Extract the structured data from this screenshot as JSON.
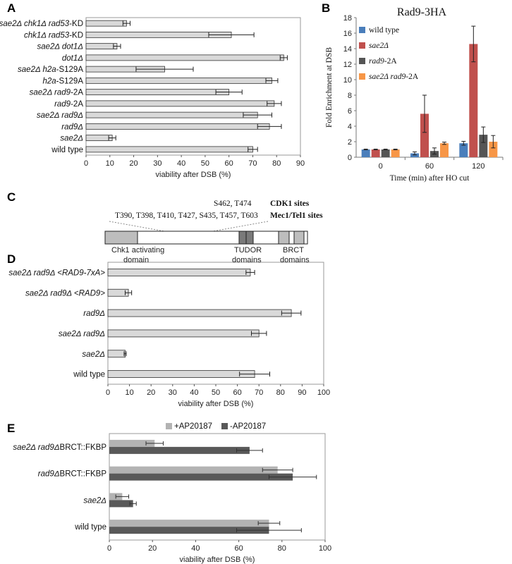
{
  "panels": {
    "A": "A",
    "B": "B",
    "C": "C",
    "D": "D",
    "E": "E"
  },
  "chart_data": [
    {
      "id": "A",
      "type": "bar",
      "orientation": "horizontal",
      "categories": [
        {
          "text": "sae2Δ chk1Δ rad53-KD",
          "italic": true,
          "sub": [
            [
              "sae2Δ chk1Δ rad53",
              true
            ],
            [
              "-KD",
              false
            ]
          ]
        },
        {
          "text": "chk1Δ rad53-KD",
          "sub": [
            [
              "chk1Δ rad53",
              true
            ],
            [
              "-KD",
              false
            ]
          ]
        },
        {
          "text": "sae2Δ dot1Δ",
          "sub": [
            [
              "sae2Δ dot1Δ",
              true
            ]
          ]
        },
        {
          "text": "dot1Δ",
          "sub": [
            [
              "dot1Δ",
              true
            ]
          ]
        },
        {
          "text": "sae2Δ h2a-S129A",
          "sub": [
            [
              "sae2Δ h2a",
              true
            ],
            [
              "-S129A",
              false
            ]
          ]
        },
        {
          "text": "h2a-S129A",
          "sub": [
            [
              "h2a",
              true
            ],
            [
              "-S129A",
              false
            ]
          ]
        },
        {
          "text": "sae2Δ rad9-2A",
          "sub": [
            [
              "sae2Δ rad9",
              true
            ],
            [
              "-2A",
              false
            ]
          ]
        },
        {
          "text": "rad9-2A",
          "sub": [
            [
              "rad9",
              true
            ],
            [
              "-2A",
              false
            ]
          ]
        },
        {
          "text": "sae2Δ rad9Δ",
          "sub": [
            [
              "sae2Δ rad9Δ",
              true
            ]
          ]
        },
        {
          "text": "rad9Δ",
          "sub": [
            [
              "rad9Δ",
              true
            ]
          ]
        },
        {
          "text": "sae2Δ",
          "sub": [
            [
              "sae2Δ",
              true
            ]
          ]
        },
        {
          "text": "wild type",
          "sub": [
            [
              "wild type",
              false
            ]
          ]
        }
      ],
      "values": [
        17,
        61,
        13,
        83,
        33,
        78,
        60,
        79,
        72,
        77,
        11,
        70
      ],
      "errors": [
        1.5,
        9.5,
        1.5,
        1.5,
        12,
        2.5,
        5.5,
        3,
        6,
        5,
        1.5,
        2
      ],
      "xlim": [
        0,
        90
      ],
      "xticks": [
        0,
        10,
        20,
        30,
        40,
        50,
        60,
        70,
        80,
        90
      ],
      "xlabel": "viability after DSB (%)"
    },
    {
      "id": "B",
      "type": "bar",
      "title": "Rad9-3HA",
      "categories": [
        "0",
        "60",
        "120"
      ],
      "xlabel": "Time (min) after HO cut",
      "ylabel": "Fold Enrichment at DSB",
      "ylim": [
        0,
        18
      ],
      "yticks": [
        0,
        2,
        4,
        6,
        8,
        10,
        12,
        14,
        16,
        18
      ],
      "series": [
        {
          "name": "wild type",
          "italic": false,
          "color": "#4a7ebb",
          "values": [
            1.0,
            0.5,
            1.8
          ],
          "errors": [
            0.05,
            0.2,
            0.25
          ]
        },
        {
          "name": "sae2Δ",
          "italic": true,
          "color": "#c0504d",
          "values": [
            1.0,
            5.6,
            14.6
          ],
          "errors": [
            0.05,
            2.4,
            2.3
          ]
        },
        {
          "name": "rad9-2A",
          "italic": true,
          "suffix": "-2A",
          "base": "rad9",
          "color": "#555555",
          "values": [
            1.0,
            0.8,
            2.9
          ],
          "errors": [
            0.05,
            0.4,
            1.0
          ]
        },
        {
          "name": "sae2Δ rad9-2A",
          "italic": true,
          "suffix": "-2A",
          "base": "sae2Δ rad9",
          "color": "#f79646",
          "values": [
            1.0,
            1.8,
            2.0
          ],
          "errors": [
            0.05,
            0.15,
            0.8
          ]
        }
      ]
    },
    {
      "id": "D",
      "type": "bar",
      "orientation": "horizontal",
      "categories": [
        {
          "text": "sae2Δ rad9Δ <RAD9-7xA>",
          "sub": [
            [
              "sae2Δ rad9Δ <RAD9-7xA>",
              true
            ]
          ]
        },
        {
          "text": "sae2Δ rad9Δ <RAD9>",
          "sub": [
            [
              "sae2Δ rad9Δ <RAD9>",
              true
            ]
          ]
        },
        {
          "text": "rad9Δ",
          "sub": [
            [
              "rad9Δ",
              true
            ]
          ]
        },
        {
          "text": "sae2Δ rad9Δ",
          "sub": [
            [
              "sae2Δ rad9Δ",
              true
            ]
          ]
        },
        {
          "text": "sae2Δ",
          "sub": [
            [
              "sae2Δ",
              true
            ]
          ]
        },
        {
          "text": "wild type",
          "sub": [
            [
              "wild type",
              false
            ]
          ]
        }
      ],
      "values": [
        66,
        9.5,
        85,
        70,
        8,
        68
      ],
      "errors": [
        2,
        1.5,
        4.5,
        3.5,
        0.5,
        7
      ],
      "xlim": [
        0,
        100
      ],
      "xticks": [
        0,
        10,
        20,
        30,
        40,
        50,
        60,
        70,
        80,
        90,
        100
      ],
      "xlabel": "viability after DSB (%)"
    },
    {
      "id": "E",
      "type": "bar",
      "orientation": "horizontal",
      "categories": [
        {
          "text": "sae2Δ rad9ΔBRCT::FKBP",
          "sub": [
            [
              "sae2Δ rad9Δ",
              true
            ],
            [
              "BRCT::FKBP",
              false
            ]
          ]
        },
        {
          "text": "rad9ΔBRCT::FKBP",
          "sub": [
            [
              "rad9Δ",
              true
            ],
            [
              "BRCT::FKBP",
              false
            ]
          ]
        },
        {
          "text": "sae2Δ",
          "sub": [
            [
              "sae2Δ",
              true
            ]
          ]
        },
        {
          "text": "wild type",
          "sub": [
            [
              "wild type",
              false
            ]
          ]
        }
      ],
      "series": [
        {
          "name": "+AP20187",
          "color": "#b3b3b3",
          "values": [
            21,
            78,
            6,
            74
          ],
          "errors": [
            4,
            7,
            3,
            5
          ]
        },
        {
          "name": "-AP20187",
          "color": "#595959",
          "values": [
            65,
            85,
            11,
            74
          ],
          "errors": [
            6,
            11,
            1.5,
            15
          ]
        }
      ],
      "xlim": [
        0,
        100
      ],
      "xticks": [
        0,
        20,
        40,
        60,
        80,
        100
      ],
      "xlabel": "viability after DSB (%)"
    }
  ],
  "diagram_c": {
    "cdk1_sites": "S462, T474",
    "cdk1_label": "CDK1 sites",
    "mec1_sites": "T390, T398, T410, T427, S435, T457, T603",
    "mec1_label": "Mec1/Tel1 sites",
    "domains": [
      {
        "line1": "Chk1 activating",
        "line2": "domain"
      },
      {
        "line1": "TUDOR",
        "line2": "domains"
      },
      {
        "line1": "BRCT",
        "line2": "domains"
      }
    ]
  }
}
